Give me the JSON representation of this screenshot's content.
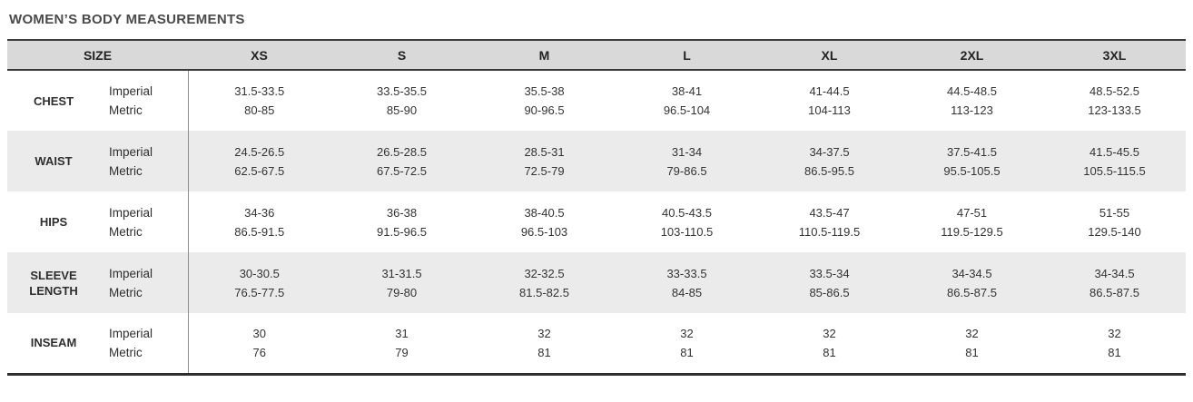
{
  "title": "WOMEN’S BODY MEASUREMENTS",
  "colors": {
    "header_bg": "#d9d9d9",
    "stripe_bg": "#ebebeb",
    "border_dark": "#3a3a3a",
    "column_separator": "#8f8f8f",
    "title_color": "#4a4a4a",
    "text": "#333333"
  },
  "table": {
    "size_header": "SIZE",
    "sizes": [
      "XS",
      "S",
      "M",
      "L",
      "XL",
      "2XL",
      "3XL"
    ],
    "units": [
      "Imperial",
      "Metric"
    ],
    "rows": [
      {
        "label": "CHEST",
        "imperial": [
          "31.5-33.5",
          "33.5-35.5",
          "35.5-38",
          "38-41",
          "41-44.5",
          "44.5-48.5",
          "48.5-52.5"
        ],
        "metric": [
          "80-85",
          "85-90",
          "90-96.5",
          "96.5-104",
          "104-113",
          "113-123",
          "123-133.5"
        ]
      },
      {
        "label": "WAIST",
        "imperial": [
          "24.5-26.5",
          "26.5-28.5",
          "28.5-31",
          "31-34",
          "34-37.5",
          "37.5-41.5",
          "41.5-45.5"
        ],
        "metric": [
          "62.5-67.5",
          "67.5-72.5",
          "72.5-79",
          "79-86.5",
          "86.5-95.5",
          "95.5-105.5",
          "105.5-115.5"
        ]
      },
      {
        "label": "HIPS",
        "imperial": [
          "34-36",
          "36-38",
          "38-40.5",
          "40.5-43.5",
          "43.5-47",
          "47-51",
          "51-55"
        ],
        "metric": [
          "86.5-91.5",
          "91.5-96.5",
          "96.5-103",
          "103-110.5",
          "110.5-119.5",
          "119.5-129.5",
          "129.5-140"
        ]
      },
      {
        "label": "SLEEVE LENGTH",
        "imperial": [
          "30-30.5",
          "31-31.5",
          "32-32.5",
          "33-33.5",
          "33.5-34",
          "34-34.5",
          "34-34.5"
        ],
        "metric": [
          "76.5-77.5",
          "79-80",
          "81.5-82.5",
          "84-85",
          "85-86.5",
          "86.5-87.5",
          "86.5-87.5"
        ]
      },
      {
        "label": "INSEAM",
        "imperial": [
          "30",
          "31",
          "32",
          "32",
          "32",
          "32",
          "32"
        ],
        "metric": [
          "76",
          "79",
          "81",
          "81",
          "81",
          "81",
          "81"
        ]
      }
    ]
  }
}
